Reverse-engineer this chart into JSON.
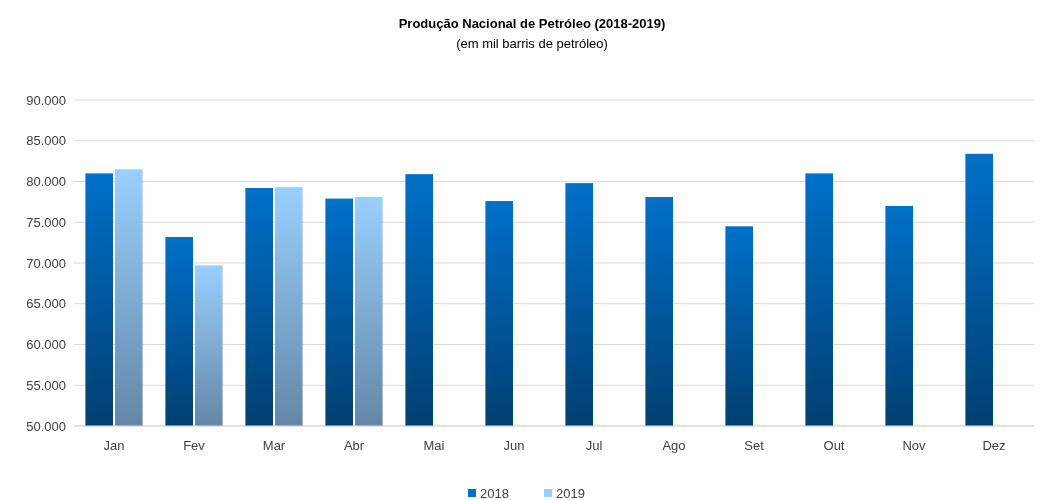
{
  "chart_data": {
    "type": "bar",
    "title": "Produção Nacional de Petróleo (2018-2019)",
    "subtitle": "(em mil  barris de petróleo)",
    "categories": [
      "Jan",
      "Fev",
      "Mar",
      "Abr",
      "Mai",
      "Jun",
      "Jul",
      "Ago",
      "Set",
      "Out",
      "Nov",
      "Dez"
    ],
    "series": [
      {
        "name": "2018",
        "color": "#0070c8",
        "values": [
          81000,
          73200,
          79200,
          77900,
          80900,
          77600,
          79800,
          78100,
          74500,
          81000,
          77000,
          83400
        ]
      },
      {
        "name": "2019",
        "color": "#99cfff",
        "values": [
          81500,
          69700,
          79300,
          78100,
          null,
          null,
          null,
          null,
          null,
          null,
          null,
          null
        ]
      }
    ],
    "ylim": [
      50000,
      90000
    ],
    "yticks": [
      {
        "value": 50000,
        "label": "50.000"
      },
      {
        "value": 55000,
        "label": "55.000"
      },
      {
        "value": 60000,
        "label": "60.000"
      },
      {
        "value": 65000,
        "label": "65.000"
      },
      {
        "value": 70000,
        "label": "70.000"
      },
      {
        "value": 75000,
        "label": "75.000"
      },
      {
        "value": 80000,
        "label": "80.000"
      },
      {
        "value": 85000,
        "label": "85.000"
      },
      {
        "value": 90000,
        "label": "90.000"
      }
    ],
    "grid": "y",
    "legend": "bottom"
  }
}
